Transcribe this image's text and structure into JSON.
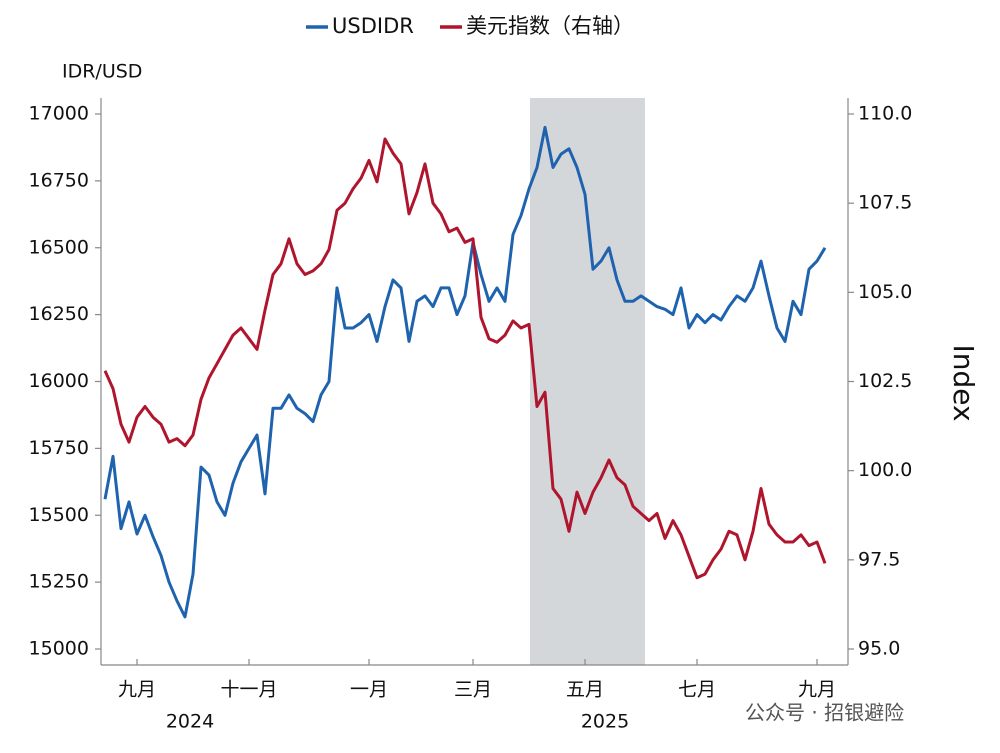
{
  "chart_data": {
    "type": "line",
    "legend": "top",
    "y_label": "IDR/USD",
    "y2_label": "Index",
    "watermark": "公众号 · 招银避险",
    "years": [
      "2024",
      "2025"
    ],
    "categories": [
      null,
      null,
      null,
      null,
      "九月",
      null,
      null,
      null,
      null,
      null,
      null,
      null,
      null,
      null,
      null,
      null,
      null,
      null,
      "十一月",
      null,
      null,
      null,
      null,
      null,
      null,
      null,
      null,
      null,
      null,
      null,
      null,
      null,
      null,
      "一月",
      null,
      null,
      null,
      null,
      null,
      null,
      null,
      null,
      null,
      null,
      null,
      null,
      "三月",
      null,
      null,
      null,
      null,
      null,
      null,
      null,
      null,
      null,
      null,
      null,
      null,
      null,
      "五月",
      null,
      null,
      null,
      null,
      null,
      null,
      null,
      null,
      null,
      null,
      null,
      null,
      null,
      "七月",
      null,
      null,
      null,
      null,
      null,
      null,
      null,
      null,
      null,
      null,
      null,
      null,
      null,
      null,
      "九月",
      null
    ],
    "series": [
      {
        "name": "USDIDR",
        "color": "#1f63ae",
        "values": [
          15560,
          15720,
          15450,
          15550,
          15430,
          15500,
          15420,
          15350,
          15250,
          15180,
          15120,
          15280,
          15680,
          15650,
          15550,
          15500,
          15620,
          15700,
          15750,
          15800,
          15580,
          15900,
          15900,
          15950,
          15900,
          15880,
          15850,
          15950,
          16000,
          16350,
          16200,
          16200,
          16220,
          16250,
          16150,
          16280,
          16380,
          16350,
          16150,
          16300,
          16320,
          16280,
          16350,
          16350,
          16250,
          16320,
          16520,
          16400,
          16300,
          16350,
          16300,
          16550,
          16620,
          16720,
          16800,
          16950,
          16800,
          16850,
          16870,
          16800,
          16700,
          16420,
          16450,
          16500,
          16380,
          16300,
          16300,
          16320,
          16300,
          16280,
          16270,
          16250,
          16350,
          16200,
          16250,
          16220,
          16250,
          16230,
          16280,
          16320,
          16300,
          16350,
          16450,
          16320,
          16200,
          16150,
          16300,
          16250,
          16420,
          16450,
          16500
        ]
      },
      {
        "name": "美元指数（右轴）",
        "color": "#b0152e",
        "axis": "y2",
        "values": [
          102.8,
          102.3,
          101.3,
          100.8,
          101.5,
          101.8,
          101.5,
          101.3,
          100.8,
          100.9,
          100.7,
          101.0,
          102.0,
          102.6,
          103.0,
          103.4,
          103.8,
          104.0,
          103.7,
          103.4,
          104.5,
          105.5,
          105.8,
          106.5,
          105.8,
          105.5,
          105.6,
          105.8,
          106.2,
          107.3,
          107.5,
          107.9,
          108.2,
          108.7,
          108.1,
          109.3,
          108.9,
          108.6,
          107.2,
          107.8,
          108.6,
          107.5,
          107.2,
          106.7,
          106.8,
          106.4,
          106.5,
          104.3,
          103.7,
          103.6,
          103.8,
          104.2,
          104.0,
          104.1,
          101.8,
          102.2,
          99.5,
          99.2,
          98.3,
          99.4,
          98.8,
          99.4,
          99.8,
          100.3,
          99.8,
          99.6,
          99.0,
          98.8,
          98.6,
          98.8,
          98.1,
          98.6,
          98.2,
          97.6,
          97.0,
          97.1,
          97.5,
          97.8,
          98.3,
          98.2,
          97.5,
          98.3,
          99.5,
          98.5,
          98.2,
          98.0,
          98.0,
          98.2,
          97.9,
          98.0,
          97.4
        ]
      }
    ],
    "ylim": [
      15000,
      17000
    ],
    "yticks": [
      15000,
      15250,
      15500,
      15750,
      16000,
      16250,
      16500,
      16750,
      17000
    ],
    "y2lim": [
      95,
      110
    ],
    "y2ticks": [
      {
        "value": 95,
        "label": "95.0"
      },
      97.5,
      {
        "value": 100,
        "label": "100.0"
      },
      102.5,
      {
        "value": 105,
        "label": "105.0"
      },
      107.5,
      {
        "value": 110,
        "label": "110.0"
      }
    ],
    "grid": false
  }
}
